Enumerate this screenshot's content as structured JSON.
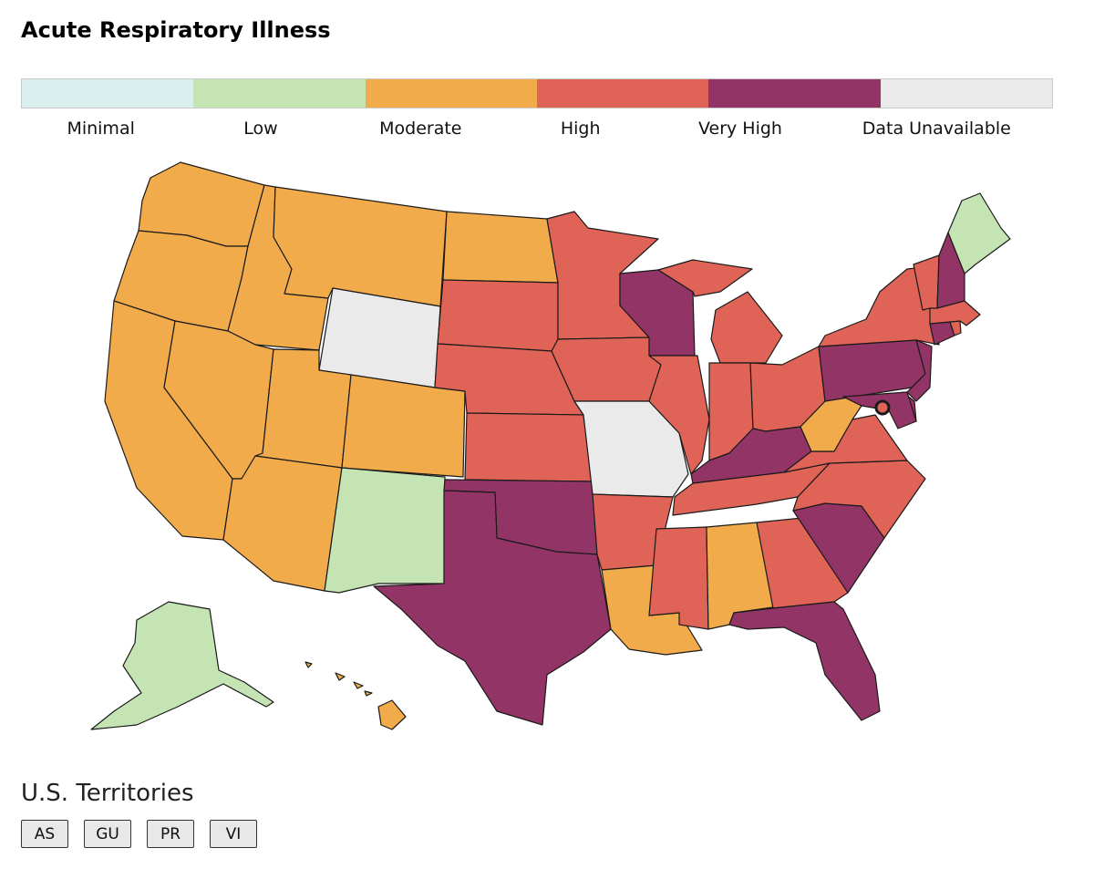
{
  "title": "Acute Respiratory Illness",
  "legend": {
    "levels": [
      {
        "key": "minimal",
        "label": "Minimal",
        "color": "#daf0ee"
      },
      {
        "key": "low",
        "label": "Low",
        "color": "#c4e5b3"
      },
      {
        "key": "moderate",
        "label": "Moderate",
        "color": "#f2ab4a"
      },
      {
        "key": "high",
        "label": "High",
        "color": "#e06357"
      },
      {
        "key": "very_high",
        "label": "Very High",
        "color": "#923465"
      },
      {
        "key": "unavailable",
        "label": "Data Unavailable",
        "color": "#eaeaea"
      }
    ]
  },
  "states": {
    "WA": "moderate",
    "OR": "moderate",
    "CA": "moderate",
    "ID": "moderate",
    "NV": "moderate",
    "MT": "moderate",
    "WY": "unavailable",
    "UT": "moderate",
    "AZ": "moderate",
    "CO": "moderate",
    "NM": "low",
    "ND": "moderate",
    "SD": "high",
    "NE": "high",
    "KS": "high",
    "OK": "very_high",
    "TX": "very_high",
    "MN": "high",
    "IA": "high",
    "MO": "unavailable",
    "AR": "high",
    "LA": "moderate",
    "WI": "very_high",
    "IL": "high",
    "MI": "high",
    "IN": "high",
    "OH": "high",
    "KY": "very_high",
    "TN": "high",
    "MS": "high",
    "AL": "moderate",
    "GA": "high",
    "FL": "very_high",
    "SC": "very_high",
    "NC": "high",
    "VA": "high",
    "WV": "moderate",
    "PA": "very_high",
    "NY": "high",
    "NJ": "very_high",
    "DE": "very_high",
    "MD": "very_high",
    "DC": "high",
    "CT": "very_high",
    "RI": "high",
    "MA": "high",
    "VT": "high",
    "NH": "very_high",
    "ME": "low",
    "AK": "low",
    "HI": "moderate"
  },
  "territories": {
    "title": "U.S. Territories",
    "items": [
      "AS",
      "GU",
      "PR",
      "VI"
    ]
  }
}
